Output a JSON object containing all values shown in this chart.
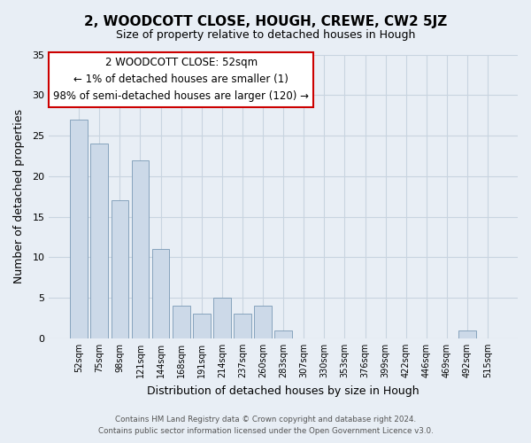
{
  "title": "2, WOODCOTT CLOSE, HOUGH, CREWE, CW2 5JZ",
  "subtitle": "Size of property relative to detached houses in Hough",
  "xlabel": "Distribution of detached houses by size in Hough",
  "ylabel": "Number of detached properties",
  "bin_labels": [
    "52sqm",
    "75sqm",
    "98sqm",
    "121sqm",
    "144sqm",
    "168sqm",
    "191sqm",
    "214sqm",
    "237sqm",
    "260sqm",
    "283sqm",
    "307sqm",
    "330sqm",
    "353sqm",
    "376sqm",
    "399sqm",
    "422sqm",
    "446sqm",
    "469sqm",
    "492sqm",
    "515sqm"
  ],
  "bar_heights": [
    27,
    24,
    17,
    22,
    11,
    4,
    3,
    5,
    3,
    4,
    1,
    0,
    0,
    0,
    0,
    0,
    0,
    0,
    0,
    1,
    0
  ],
  "bar_color": "#ccd9e8",
  "bar_edge_color": "#7a9ab5",
  "ylim": [
    0,
    35
  ],
  "yticks": [
    0,
    5,
    10,
    15,
    20,
    25,
    30,
    35
  ],
  "annotation_line1": "2 WOODCOTT CLOSE: 52sqm",
  "annotation_line2": "← 1% of detached houses are smaller (1)",
  "annotation_line3": "98% of semi-detached houses are larger (120) →",
  "annotation_box_color": "#ffffff",
  "annotation_box_edge_color": "#cc0000",
  "footer_line1": "Contains HM Land Registry data © Crown copyright and database right 2024.",
  "footer_line2": "Contains public sector information licensed under the Open Government Licence v3.0.",
  "background_color": "#e8eef5",
  "plot_background_color": "#e8eef5",
  "grid_color": "#c8d4e0"
}
